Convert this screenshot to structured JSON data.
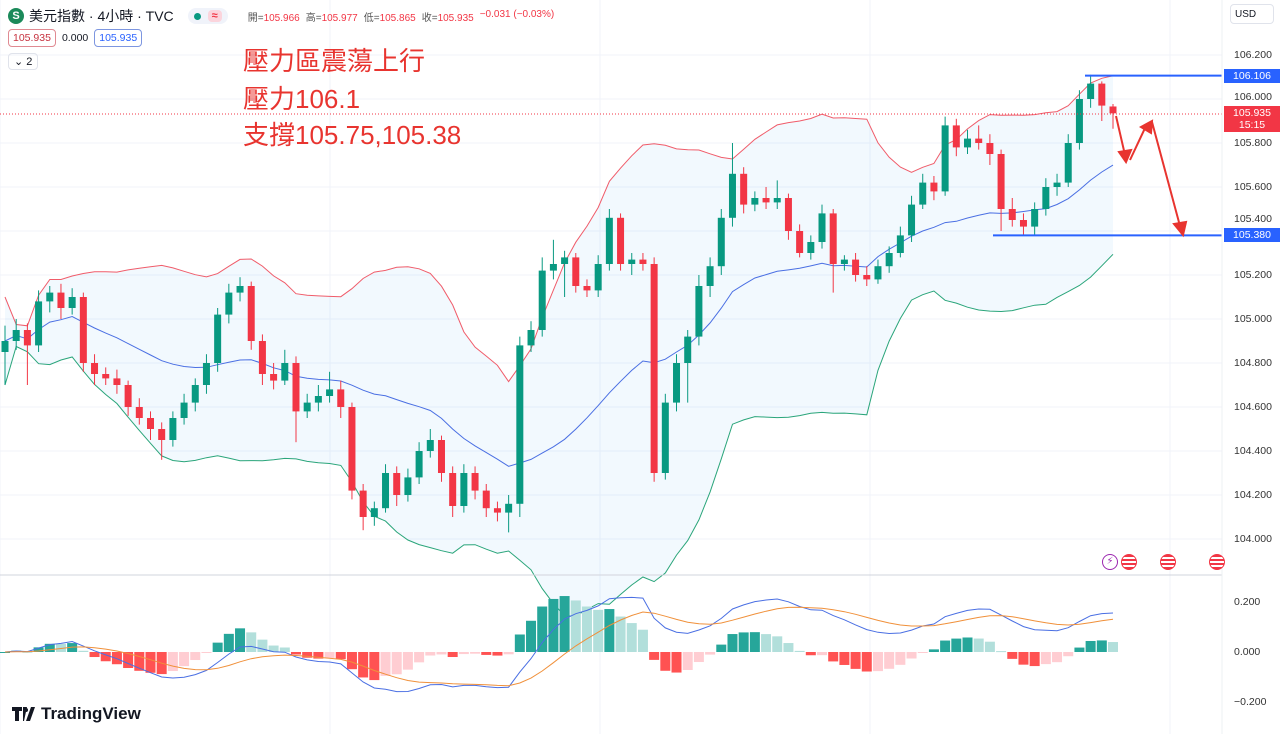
{
  "header": {
    "symbol_icon": "S",
    "title": "美元指數 · 4小時 · TVC",
    "status_dot_color": "#089981",
    "approx_badge": "≈",
    "ohlc": {
      "open_label": "開=",
      "open": "105.966",
      "high_label": "高=",
      "high": "105.977",
      "low_label": "低=",
      "low": "105.865",
      "close_label": "收=",
      "close": "105.935",
      "change": "−0.031 (−0.03%)"
    },
    "bid": "105.935",
    "spread": "0.000",
    "ask": "105.935",
    "indicators_toggle": "⌄ 2"
  },
  "annotations": {
    "line1": "壓力區震蕩上行",
    "line2": "壓力106.1",
    "line3": "支撐105.75,105.38"
  },
  "price_axis": {
    "currency": "USD",
    "ticks": [
      "106.200",
      "106.000",
      "105.800",
      "105.600",
      "105.400",
      "105.200",
      "105.000",
      "104.800",
      "104.600",
      "104.400",
      "104.200",
      "104.000"
    ],
    "levels": [
      {
        "label": "106.106",
        "price": 106.106
      },
      {
        "label": "105.380",
        "price": 105.38
      }
    ],
    "last_price": "105.935",
    "countdown": "15:15"
  },
  "macd_axis": {
    "ticks": [
      "0.200",
      "0.000",
      "−0.200"
    ]
  },
  "branding": {
    "logo": "TradingView"
  },
  "colors": {
    "up": "#089981",
    "down": "#f23645",
    "bb_upper": "#f05c6a",
    "bb_lower": "#2aa57a",
    "bb_basis": "#4a6fe3",
    "level": "#2962ff",
    "macd": "#4a6fe3",
    "signal": "#f0903a",
    "arrow": "#e8342f"
  },
  "chart_data": {
    "type": "candlestick",
    "symbol": "美元指數",
    "interval": "4小時",
    "ylim": [
      103.9,
      106.3
    ],
    "macd_ylim": [
      -0.25,
      0.25
    ],
    "columns": [
      "open",
      "high",
      "low",
      "close"
    ],
    "candles": [
      [
        104.85,
        104.97,
        104.7,
        104.9
      ],
      [
        104.9,
        105.0,
        104.86,
        104.95
      ],
      [
        104.95,
        104.98,
        104.7,
        104.88
      ],
      [
        104.88,
        105.13,
        104.85,
        105.08
      ],
      [
        105.08,
        105.15,
        105.03,
        105.12
      ],
      [
        105.12,
        105.16,
        105.0,
        105.05
      ],
      [
        105.05,
        105.14,
        105.02,
        105.1
      ],
      [
        105.1,
        105.12,
        104.76,
        104.8
      ],
      [
        104.8,
        104.84,
        104.7,
        104.75
      ],
      [
        104.75,
        104.78,
        104.7,
        104.73
      ],
      [
        104.73,
        104.77,
        104.66,
        104.7
      ],
      [
        104.7,
        104.72,
        104.56,
        104.6
      ],
      [
        104.6,
        104.64,
        104.52,
        104.55
      ],
      [
        104.55,
        104.58,
        104.45,
        104.5
      ],
      [
        104.5,
        104.53,
        104.36,
        104.45
      ],
      [
        104.45,
        104.58,
        104.42,
        104.55
      ],
      [
        104.55,
        104.66,
        104.52,
        104.62
      ],
      [
        104.62,
        104.73,
        104.58,
        104.7
      ],
      [
        104.7,
        104.84,
        104.66,
        104.8
      ],
      [
        104.8,
        105.05,
        104.76,
        105.02
      ],
      [
        105.02,
        105.16,
        104.98,
        105.12
      ],
      [
        105.12,
        105.19,
        105.08,
        105.15
      ],
      [
        105.15,
        105.17,
        104.86,
        104.9
      ],
      [
        104.9,
        104.93,
        104.7,
        104.75
      ],
      [
        104.75,
        104.8,
        104.68,
        104.72
      ],
      [
        104.72,
        104.86,
        104.7,
        104.8
      ],
      [
        104.8,
        104.83,
        104.44,
        104.58
      ],
      [
        104.58,
        104.66,
        104.55,
        104.62
      ],
      [
        104.62,
        104.7,
        104.58,
        104.65
      ],
      [
        104.65,
        104.76,
        104.62,
        104.68
      ],
      [
        104.68,
        104.72,
        104.55,
        104.6
      ],
      [
        104.6,
        104.62,
        104.18,
        104.22
      ],
      [
        104.22,
        104.25,
        104.04,
        104.1
      ],
      [
        104.1,
        104.17,
        104.06,
        104.14
      ],
      [
        104.14,
        104.34,
        104.12,
        104.3
      ],
      [
        104.3,
        104.33,
        104.15,
        104.2
      ],
      [
        104.2,
        104.32,
        104.17,
        104.28
      ],
      [
        104.28,
        104.44,
        104.25,
        104.4
      ],
      [
        104.4,
        104.5,
        104.37,
        104.45
      ],
      [
        104.45,
        104.47,
        104.26,
        104.3
      ],
      [
        104.3,
        104.33,
        104.1,
        104.15
      ],
      [
        104.15,
        104.34,
        104.12,
        104.3
      ],
      [
        104.3,
        104.33,
        104.18,
        104.22
      ],
      [
        104.22,
        104.25,
        104.1,
        104.14
      ],
      [
        104.14,
        104.17,
        104.08,
        104.12
      ],
      [
        104.12,
        104.2,
        104.03,
        104.16
      ],
      [
        104.16,
        104.92,
        104.1,
        104.88
      ],
      [
        104.88,
        104.99,
        104.85,
        104.95
      ],
      [
        104.95,
        105.28,
        104.92,
        105.22
      ],
      [
        105.22,
        105.36,
        105.18,
        105.25
      ],
      [
        105.25,
        105.31,
        105.1,
        105.28
      ],
      [
        105.28,
        105.3,
        105.12,
        105.15
      ],
      [
        105.15,
        105.18,
        105.1,
        105.13
      ],
      [
        105.13,
        105.29,
        105.1,
        105.25
      ],
      [
        105.25,
        105.5,
        105.22,
        105.46
      ],
      [
        105.46,
        105.48,
        105.22,
        105.25
      ],
      [
        105.25,
        105.3,
        105.2,
        105.27
      ],
      [
        105.27,
        105.3,
        105.22,
        105.25
      ],
      [
        105.25,
        105.28,
        104.26,
        104.3
      ],
      [
        104.3,
        104.66,
        104.27,
        104.62
      ],
      [
        104.62,
        104.84,
        104.58,
        104.8
      ],
      [
        104.8,
        104.95,
        104.62,
        104.92
      ],
      [
        104.92,
        105.2,
        104.88,
        105.15
      ],
      [
        105.15,
        105.28,
        105.1,
        105.24
      ],
      [
        105.24,
        105.5,
        105.2,
        105.46
      ],
      [
        105.46,
        105.8,
        105.42,
        105.66
      ],
      [
        105.66,
        105.69,
        105.48,
        105.52
      ],
      [
        105.52,
        105.58,
        105.49,
        105.55
      ],
      [
        105.55,
        105.6,
        105.5,
        105.53
      ],
      [
        105.53,
        105.63,
        105.5,
        105.55
      ],
      [
        105.55,
        105.57,
        105.36,
        105.4
      ],
      [
        105.4,
        105.43,
        105.28,
        105.3
      ],
      [
        105.3,
        105.38,
        105.27,
        105.35
      ],
      [
        105.35,
        105.52,
        105.32,
        105.48
      ],
      [
        105.48,
        105.5,
        105.12,
        105.25
      ],
      [
        105.25,
        105.29,
        105.22,
        105.27
      ],
      [
        105.27,
        105.3,
        105.17,
        105.2
      ],
      [
        105.2,
        105.24,
        105.15,
        105.18
      ],
      [
        105.18,
        105.27,
        105.16,
        105.24
      ],
      [
        105.24,
        105.33,
        105.21,
        105.3
      ],
      [
        105.3,
        105.42,
        105.28,
        105.38
      ],
      [
        105.38,
        105.56,
        105.35,
        105.52
      ],
      [
        105.52,
        105.66,
        105.5,
        105.62
      ],
      [
        105.62,
        105.65,
        105.54,
        105.58
      ],
      [
        105.58,
        105.92,
        105.56,
        105.88
      ],
      [
        105.88,
        105.91,
        105.74,
        105.78
      ],
      [
        105.78,
        105.86,
        105.75,
        105.82
      ],
      [
        105.82,
        105.88,
        105.77,
        105.8
      ],
      [
        105.8,
        105.84,
        105.7,
        105.75
      ],
      [
        105.75,
        105.77,
        105.4,
        105.5
      ],
      [
        105.5,
        105.55,
        105.42,
        105.45
      ],
      [
        105.45,
        105.48,
        105.38,
        105.42
      ],
      [
        105.42,
        105.53,
        105.38,
        105.5
      ],
      [
        105.5,
        105.64,
        105.47,
        105.6
      ],
      [
        105.6,
        105.66,
        105.56,
        105.62
      ],
      [
        105.62,
        105.84,
        105.6,
        105.8
      ],
      [
        105.8,
        106.04,
        105.77,
        106.0
      ],
      [
        106.0,
        106.11,
        105.96,
        106.07
      ],
      [
        106.07,
        106.08,
        105.9,
        105.97
      ],
      [
        105.966,
        105.977,
        105.865,
        105.935
      ]
    ]
  }
}
